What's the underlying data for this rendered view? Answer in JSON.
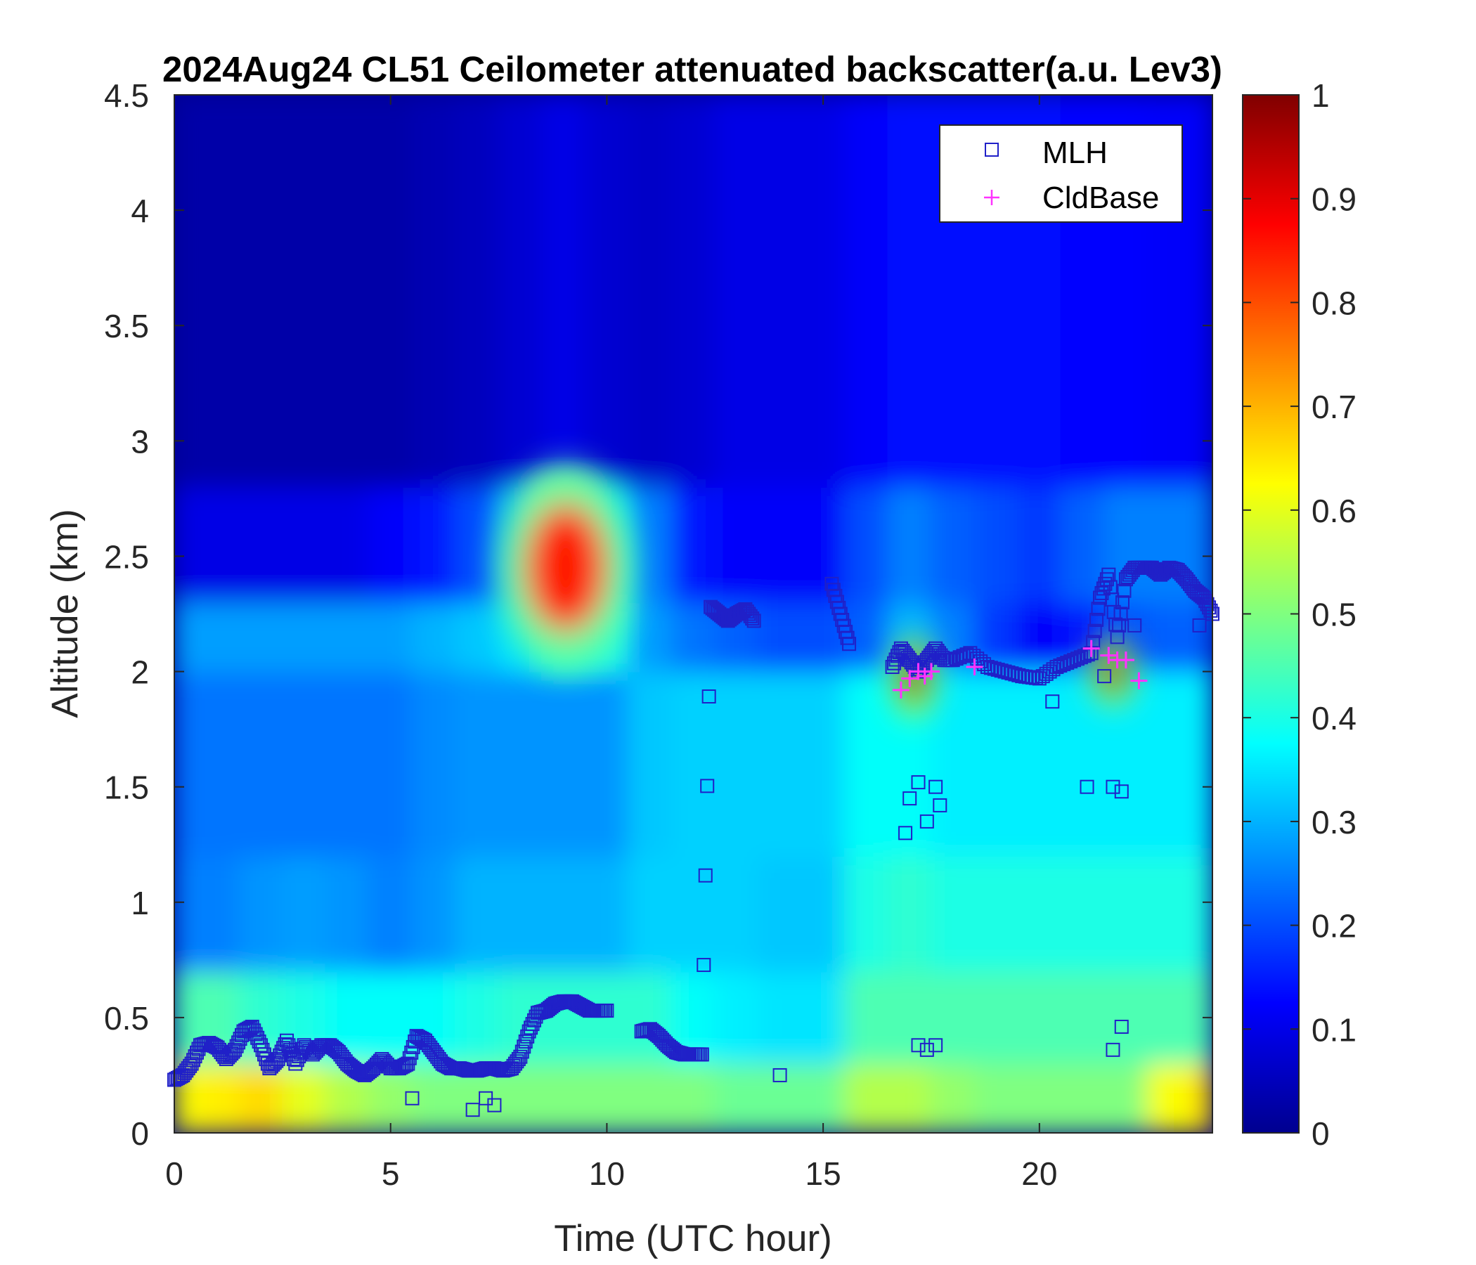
{
  "chart_data": {
    "type": "heatmap",
    "title": "2024Aug24 CL51 Ceilometer attenuated backscatter(a.u. Lev3)",
    "xlabel": "Time (UTC hour)",
    "ylabel": "Altitude (km)",
    "xlim": [
      0,
      24
    ],
    "ylim": [
      0,
      4.5
    ],
    "x_ticks": [
      0,
      5,
      10,
      15,
      20
    ],
    "y_ticks": [
      0,
      0.5,
      1,
      1.5,
      2,
      2.5,
      3,
      3.5,
      4,
      4.5
    ],
    "colorbar": {
      "colormap": "jet",
      "range": [
        0,
        1
      ],
      "ticks": [
        0,
        0.1,
        0.2,
        0.3,
        0.4,
        0.5,
        0.6,
        0.7,
        0.8,
        0.9,
        1
      ]
    },
    "legend": {
      "placement": "top-right",
      "entries": [
        {
          "label": "MLH",
          "marker": "square",
          "color": "#2020c8"
        },
        {
          "label": "CldBase",
          "marker": "plus",
          "color": "#ff33ff"
        }
      ]
    },
    "backscatter_field": {
      "x_hours": [
        0,
        1,
        2,
        3,
        4,
        5,
        6,
        7,
        8,
        9,
        10,
        11,
        12,
        13,
        14,
        15,
        16,
        17,
        18,
        19,
        20,
        21,
        22,
        23,
        24
      ],
      "bands": [
        {
          "altitude_km": [
            0.0,
            0.3
          ],
          "values": [
            0.62,
            0.64,
            0.66,
            0.6,
            0.55,
            0.52,
            0.5,
            0.5,
            0.5,
            0.5,
            0.5,
            0.5,
            0.5,
            0.48,
            0.48,
            0.48,
            0.55,
            0.55,
            0.52,
            0.5,
            0.5,
            0.5,
            0.5,
            0.62,
            0.66
          ]
        },
        {
          "altitude_km": [
            0.3,
            0.7
          ],
          "values": [
            0.45,
            0.45,
            0.42,
            0.4,
            0.38,
            0.38,
            0.38,
            0.4,
            0.42,
            0.42,
            0.42,
            0.42,
            0.38,
            0.36,
            0.35,
            0.35,
            0.45,
            0.45,
            0.45,
            0.45,
            0.45,
            0.45,
            0.45,
            0.45,
            0.45
          ]
        },
        {
          "altitude_km": [
            0.7,
            1.2
          ],
          "values": [
            0.25,
            0.25,
            0.27,
            0.28,
            0.27,
            0.25,
            0.27,
            0.3,
            0.3,
            0.3,
            0.3,
            0.33,
            0.33,
            0.33,
            0.32,
            0.32,
            0.4,
            0.42,
            0.4,
            0.4,
            0.4,
            0.4,
            0.4,
            0.4,
            0.4
          ]
        },
        {
          "altitude_km": [
            1.2,
            2.0
          ],
          "values": [
            0.24,
            0.24,
            0.24,
            0.24,
            0.24,
            0.24,
            0.26,
            0.27,
            0.27,
            0.27,
            0.27,
            0.32,
            0.33,
            0.33,
            0.33,
            0.33,
            0.38,
            0.38,
            0.36,
            0.36,
            0.36,
            0.36,
            0.36,
            0.36,
            0.36
          ]
        },
        {
          "altitude_km": [
            2.0,
            2.3
          ],
          "values": [
            0.28,
            0.28,
            0.28,
            0.28,
            0.28,
            0.28,
            0.3,
            0.32,
            0.35,
            0.4,
            0.4,
            0.28,
            0.24,
            0.22,
            0.2,
            0.2,
            0.22,
            0.3,
            0.25,
            0.18,
            0.12,
            0.15,
            0.2,
            0.22,
            0.22
          ]
        },
        {
          "altitude_km": [
            2.3,
            2.8
          ],
          "values": [
            0.1,
            0.1,
            0.1,
            0.1,
            0.1,
            0.12,
            0.15,
            0.2,
            0.3,
            0.5,
            0.35,
            0.25,
            0.15,
            0.12,
            0.12,
            0.12,
            0.2,
            0.25,
            0.22,
            0.2,
            0.18,
            0.22,
            0.25,
            0.25,
            0.25
          ]
        },
        {
          "altitude_km": [
            2.8,
            4.5
          ],
          "values": [
            0.04,
            0.04,
            0.04,
            0.04,
            0.04,
            0.04,
            0.05,
            0.06,
            0.08,
            0.1,
            0.08,
            0.07,
            0.08,
            0.1,
            0.1,
            0.1,
            0.12,
            0.14,
            0.14,
            0.14,
            0.14,
            0.13,
            0.13,
            0.12,
            0.12
          ]
        }
      ],
      "features": [
        {
          "name": "elevated aerosol layer",
          "time_range": [
            7.5,
            10.6
          ],
          "altitude_range": [
            2.0,
            2.9
          ],
          "peak_value": 0.85
        },
        {
          "name": "cloud backscatter",
          "time_range": [
            16.6,
            17.6
          ],
          "altitude_range": [
            1.8,
            2.15
          ],
          "peak_value": 1.0
        },
        {
          "name": "cloud backscatter",
          "time_range": [
            21.2,
            22.2
          ],
          "altitude_range": [
            1.85,
            2.15
          ],
          "peak_value": 1.0
        }
      ]
    },
    "series": [
      {
        "name": "MLH",
        "marker": "square",
        "x": [
          0.0,
          0.2,
          0.4,
          0.6,
          0.8,
          1.0,
          1.2,
          1.4,
          1.6,
          1.8,
          2.0,
          2.2,
          2.4,
          2.6,
          2.8,
          3.0,
          3.2,
          3.4,
          3.6,
          3.8,
          4.0,
          4.2,
          4.4,
          4.6,
          4.8,
          5.0,
          5.2,
          5.4,
          5.6,
          5.8,
          6.0,
          6.2,
          6.4,
          6.6,
          6.8,
          7.0,
          7.2,
          7.4,
          7.6,
          7.8,
          8.0,
          8.2,
          8.4,
          8.6,
          8.8,
          9.0,
          9.2,
          9.4,
          9.6,
          9.8,
          10.0,
          10.8,
          11.0,
          11.2,
          11.4,
          11.6,
          11.8,
          12.0,
          12.2,
          12.4,
          12.6,
          12.8,
          13.0,
          13.2,
          13.4,
          15.2,
          15.4,
          15.6,
          16.6,
          16.8,
          17.0,
          17.2,
          17.4,
          17.6,
          17.8,
          18.0,
          18.4,
          18.8,
          19.2,
          19.6,
          20.0,
          20.4,
          20.8,
          21.2,
          21.4,
          21.6,
          21.8,
          22.0,
          22.2,
          22.4,
          22.6,
          22.8,
          23.0,
          23.2,
          23.4,
          23.6,
          23.8,
          24.0
        ],
        "y": [
          0.23,
          0.25,
          0.3,
          0.38,
          0.39,
          0.37,
          0.32,
          0.36,
          0.44,
          0.46,
          0.38,
          0.28,
          0.32,
          0.4,
          0.3,
          0.38,
          0.34,
          0.38,
          0.38,
          0.35,
          0.3,
          0.27,
          0.25,
          0.28,
          0.32,
          0.28,
          0.28,
          0.3,
          0.42,
          0.4,
          0.35,
          0.3,
          0.28,
          0.28,
          0.27,
          0.27,
          0.28,
          0.28,
          0.27,
          0.28,
          0.33,
          0.44,
          0.52,
          0.53,
          0.56,
          0.57,
          0.57,
          0.55,
          0.53,
          0.53,
          0.53,
          0.44,
          0.45,
          0.42,
          0.38,
          0.35,
          0.34,
          0.34,
          0.34,
          2.28,
          2.25,
          2.22,
          2.25,
          2.27,
          2.22,
          2.38,
          2.25,
          2.12,
          2.02,
          2.1,
          2.05,
          2.0,
          2.05,
          2.1,
          2.05,
          2.05,
          2.08,
          2.02,
          2.0,
          1.98,
          1.97,
          2.02,
          2.05,
          2.08,
          2.32,
          2.42,
          2.15,
          2.4,
          2.45,
          2.45,
          2.45,
          2.42,
          2.45,
          2.44,
          2.4,
          2.35,
          2.32,
          2.25
        ],
        "outliers": [
          {
            "x": 5.5,
            "y": 0.15
          },
          {
            "x": 6.9,
            "y": 0.1
          },
          {
            "x": 7.2,
            "y": 0.15
          },
          {
            "x": 7.4,
            "y": 0.12
          },
          {
            "x": 14.0,
            "y": 0.25
          },
          {
            "x": 16.9,
            "y": 1.3
          },
          {
            "x": 17.0,
            "y": 1.45
          },
          {
            "x": 17.2,
            "y": 1.52
          },
          {
            "x": 17.4,
            "y": 1.35
          },
          {
            "x": 17.6,
            "y": 1.5
          },
          {
            "x": 17.7,
            "y": 1.42
          },
          {
            "x": 17.2,
            "y": 0.38
          },
          {
            "x": 17.4,
            "y": 0.36
          },
          {
            "x": 17.6,
            "y": 0.38
          },
          {
            "x": 21.1,
            "y": 1.5
          },
          {
            "x": 21.7,
            "y": 1.5
          },
          {
            "x": 21.9,
            "y": 1.48
          },
          {
            "x": 21.7,
            "y": 0.36
          },
          {
            "x": 21.9,
            "y": 0.46
          },
          {
            "x": 22.2,
            "y": 2.2
          },
          {
            "x": 23.7,
            "y": 2.2
          },
          {
            "x": 21.5,
            "y": 1.98
          },
          {
            "x": 20.3,
            "y": 1.87
          }
        ]
      },
      {
        "name": "CldBase",
        "marker": "plus",
        "x": [
          16.8,
          17.0,
          17.2,
          17.35,
          17.5,
          18.5,
          21.2,
          21.6,
          21.8,
          22.0,
          22.3
        ],
        "y": [
          1.92,
          1.97,
          2.0,
          1.98,
          2.0,
          2.02,
          2.1,
          2.07,
          2.05,
          2.05,
          1.96
        ]
      }
    ]
  }
}
